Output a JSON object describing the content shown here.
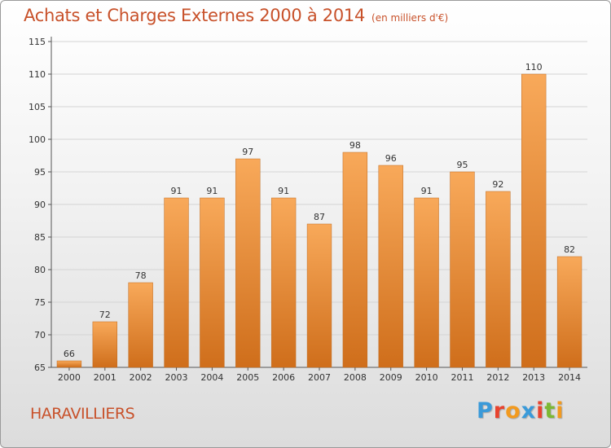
{
  "header": {
    "title": "Achats et Charges Externes 2000 à 2014",
    "subtitle": "(en milliers d'€)"
  },
  "footer": {
    "city": "HARAVILLIERS",
    "logo_text": "Proxiti",
    "logo_letter_colors": [
      "#3a9ad9",
      "#e8432e",
      "#f29a1f",
      "#3a9ad9",
      "#e8432e",
      "#7cb833",
      "#f29a1f"
    ]
  },
  "colors": {
    "bar_top": "#f8a95a",
    "bar_bottom": "#cf6e1b",
    "title": "#c8512a"
  },
  "chart_data": {
    "type": "bar",
    "categories": [
      "2000",
      "2001",
      "2002",
      "2003",
      "2004",
      "2005",
      "2006",
      "2007",
      "2008",
      "2009",
      "2010",
      "2011",
      "2012",
      "2013",
      "2014"
    ],
    "values": [
      66,
      72,
      78,
      91,
      91,
      97,
      91,
      87,
      98,
      96,
      91,
      95,
      92,
      110,
      82
    ],
    "title": "Achats et Charges Externes 2000 à 2014",
    "subtitle": "(en milliers d'€)",
    "xlabel": "",
    "ylabel": "",
    "ylim": [
      65,
      115
    ],
    "yticks": [
      65,
      70,
      75,
      80,
      85,
      90,
      95,
      100,
      105,
      110,
      115
    ],
    "grid": true,
    "legend": "none"
  }
}
